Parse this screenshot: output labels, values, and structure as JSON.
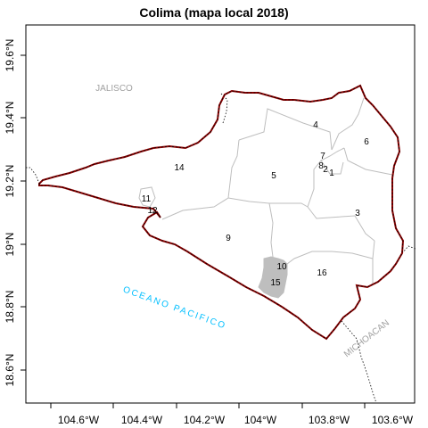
{
  "title": "Colima (mapa local 2018)",
  "x_ticks": [
    "104.6°W",
    "104.4°W",
    "104.2°W",
    "104°W",
    "103.8°W",
    "103.6°W"
  ],
  "y_ticks": [
    "18.6°N",
    "18.8°N",
    "19°N",
    "19.2°N",
    "19.4°N",
    "19.6°N"
  ],
  "region_labels": {
    "jalisco": "JALISCO",
    "oceano": "OCEANO PACIFICO",
    "michoacan": "MICHOACAN"
  },
  "municipalities": [
    {
      "id": "1",
      "label": "1"
    },
    {
      "id": "2",
      "label": "2"
    },
    {
      "id": "3",
      "label": "3"
    },
    {
      "id": "4",
      "label": "4"
    },
    {
      "id": "5",
      "label": "5"
    },
    {
      "id": "6",
      "label": "6"
    },
    {
      "id": "7",
      "label": "7"
    },
    {
      "id": "8",
      "label": "8"
    },
    {
      "id": "9",
      "label": "9"
    },
    {
      "id": "10",
      "label": "10"
    },
    {
      "id": "11",
      "label": "11"
    },
    {
      "id": "12",
      "label": "12"
    },
    {
      "id": "14",
      "label": "14"
    },
    {
      "id": "15",
      "label": "15"
    },
    {
      "id": "16",
      "label": "16"
    }
  ],
  "colors": {
    "state_border": "#8b0000",
    "muni_border": "#bebebe",
    "highlight_fill": "#bebebe",
    "ocean_label": "#00bfff",
    "neighbor_label": "#a0a0a0"
  }
}
